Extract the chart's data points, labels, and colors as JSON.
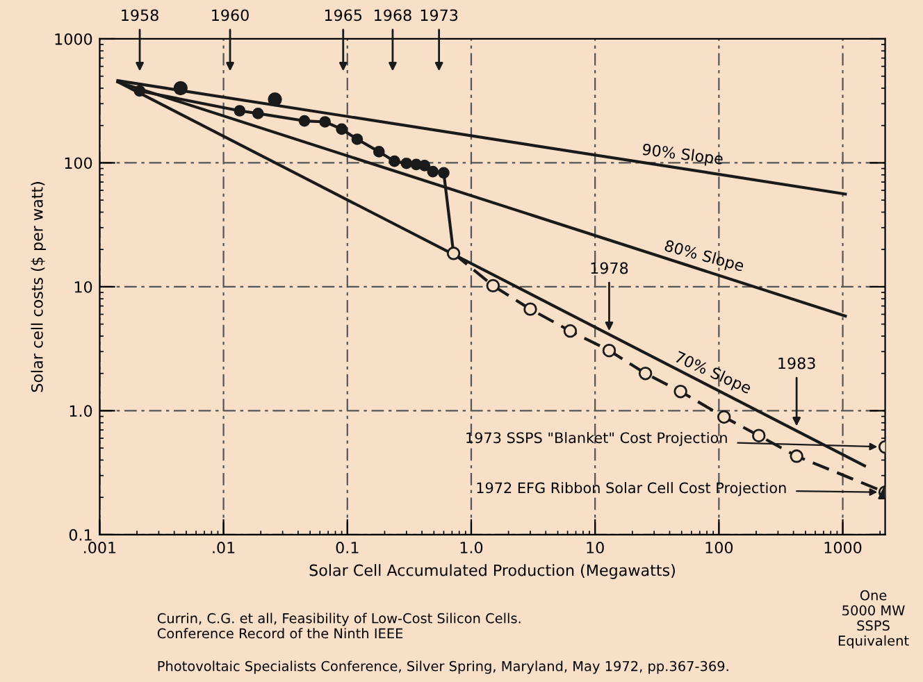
{
  "chart_data": {
    "type": "line",
    "xlabel": "Solar Cell Accumulated Production (Megawatts)",
    "ylabel": "Solar cell costs ($ per watt)",
    "log": "xy",
    "xlim": [
      0.001,
      2200
    ],
    "ylim": [
      0.1,
      1000
    ],
    "xticks": [
      {
        "value": 0.001,
        "label": ".001"
      },
      {
        "value": 0.01,
        "label": ".01"
      },
      {
        "value": 0.1,
        "label": "0.1"
      },
      {
        "value": 1,
        "label": "1.0"
      },
      10,
      100,
      1000
    ],
    "yticks": [
      {
        "value": 0.1,
        "label": "0.1"
      },
      {
        "value": 1,
        "label": "1.0"
      },
      10,
      100,
      1000
    ],
    "grid": true,
    "series": [
      {
        "color": "#1a1a1a",
        "marker": "circle",
        "line_style": "solid",
        "x": [
          0.0021,
          0.0135,
          0.019,
          0.045,
          0.066,
          0.09,
          0.12,
          0.18,
          0.24,
          0.3,
          0.36,
          0.42,
          0.49,
          0.6,
          0.72
        ],
        "values": [
          380,
          263,
          250,
          218,
          214,
          187,
          155,
          123,
          103,
          99,
          97,
          95,
          85,
          83,
          18.6
        ]
      },
      {
        "type": "scatter",
        "color": "#1a1a1a",
        "marker": "circle",
        "x": [
          0.0045,
          0.026
        ],
        "values": [
          400,
          325
        ]
      },
      {
        "color": "#1a1a1a",
        "marker": "circle",
        "line_style": "dashed",
        "x": [
          0.72,
          1.5,
          3.0,
          6.3,
          13,
          25.5,
          49,
          110,
          210,
          424,
          2200
        ],
        "values": [
          18.6,
          10.2,
          6.6,
          4.4,
          3.06,
          2.0,
          1.43,
          0.89,
          0.63,
          0.43,
          0.22
        ]
      },
      {
        "type": "scatter",
        "color": "#1a1a1a",
        "marker": "triangle",
        "x": [
          2200
        ],
        "values": [
          0.22
        ]
      },
      {
        "color": "#1a1a1a",
        "marker": "circle",
        "line_style": "dashed",
        "x": [
          2200
        ],
        "values": [
          0.51
        ]
      },
      {
        "color": "#1a1a1a",
        "marker": "none",
        "line_style": "solid",
        "x": [
          0.0014,
          1050
        ],
        "values": [
          460,
          56
        ]
      },
      {
        "color": "#1a1a1a",
        "marker": "none",
        "line_style": "solid",
        "x": [
          0.0014,
          1050
        ],
        "values": [
          450,
          5.8
        ]
      },
      {
        "color": "#1a1a1a",
        "marker": "none",
        "line_style": "solid",
        "x": [
          0.0014,
          1500
        ],
        "values": [
          450,
          0.36
        ]
      }
    ],
    "annotations": [
      {
        "text": "90% Slope",
        "x": 50,
        "y": 90
      },
      {
        "text": "80% Slope",
        "x": 73,
        "y": 13.7
      },
      {
        "text": "70% Slope",
        "x": 84,
        "y": 1.58
      },
      "1958",
      "1960",
      "1965",
      "1968",
      "1973",
      {
        "text": "1978",
        "x": 13,
        "y": 4.1
      },
      {
        "text": "1983",
        "x": 424,
        "y": 0.7
      },
      {
        "text": "1973 SSPS \"Blanket\" Cost Projection",
        "x": 2200,
        "y": 0.51
      },
      {
        "text": "1972 EFG Ribbon Solar Cell Cost Projection",
        "x": 2200,
        "y": 0.22
      },
      "One\n5000 MW\nSSPS\nEquivalent",
      "Currin, C.G. et all, Feasibility of Low-Cost Silicon Cells.\nConference Record of the Ninth IEEE",
      "Photovoltaic Specialists Conference, Silver Spring, Maryland, May 1972, pp.367-369."
    ]
  }
}
